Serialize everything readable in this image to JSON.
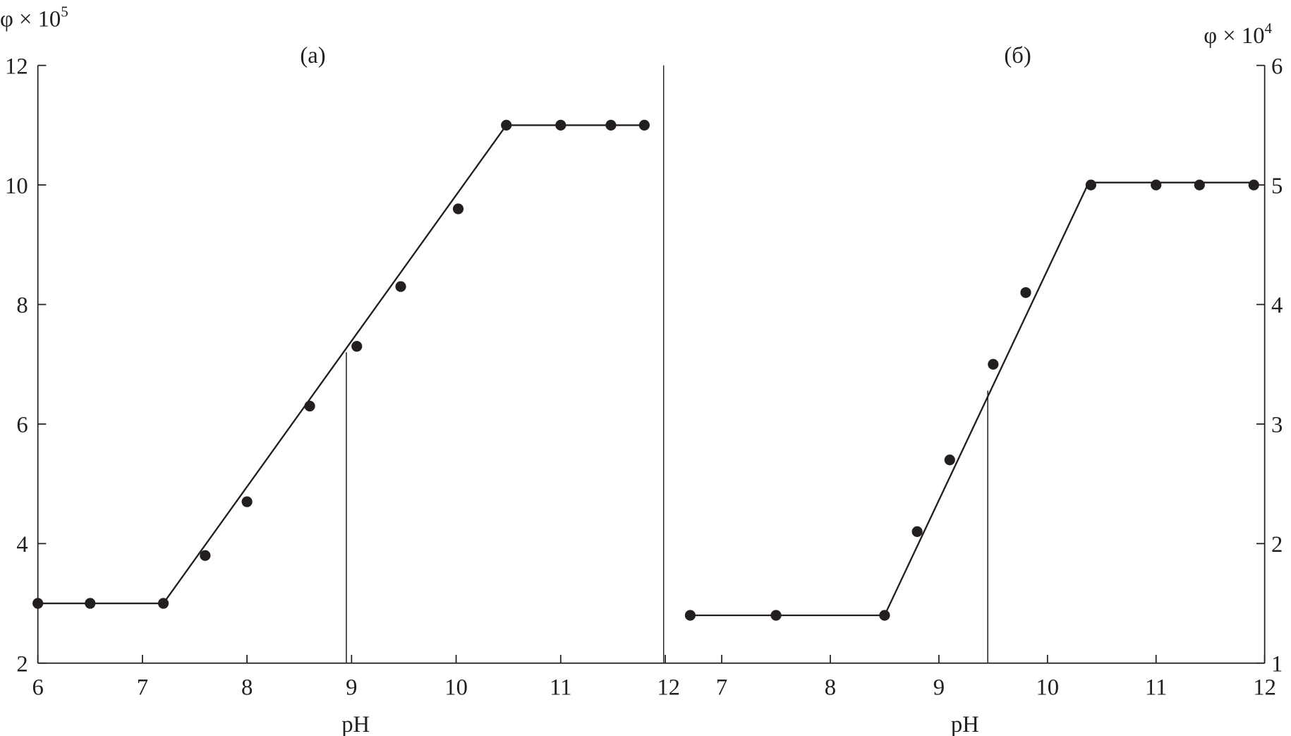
{
  "chart_data": [
    {
      "type": "scatter",
      "panel_label": "(a)",
      "xlabel": "pH",
      "ylabel": "φ × 10",
      "ylabel_exp": "5",
      "xlim": [
        6,
        12
      ],
      "ylim": [
        2,
        12
      ],
      "xticks": [
        6,
        7,
        8,
        9,
        10,
        11,
        12
      ],
      "yticks": [
        2,
        4,
        6,
        8,
        10,
        12
      ],
      "y_axis_side": "left",
      "grid": false,
      "points": {
        "x": [
          6,
          6.5,
          7.2,
          7.6,
          8.0,
          8.6,
          9.05,
          9.47,
          10.02,
          10.48,
          11.0,
          11.48,
          11.8
        ],
        "y": [
          3,
          3,
          3,
          3.8,
          4.7,
          6.3,
          7.3,
          8.3,
          9.6,
          11,
          11,
          11,
          11
        ]
      },
      "fit_line": {
        "x": [
          6,
          7.2,
          10.48,
          11.8
        ],
        "y": [
          3,
          3,
          11,
          11
        ]
      },
      "marker_line": {
        "x": 8.95,
        "y_top": 7.2
      }
    },
    {
      "type": "scatter",
      "panel_label": "(б)",
      "xlabel": "pH",
      "ylabel": "φ × 10",
      "ylabel_exp": "4",
      "xlim": [
        6.48,
        12
      ],
      "ylim": [
        1,
        6
      ],
      "xticks": [
        7,
        8,
        9,
        10,
        11,
        12
      ],
      "yticks": [
        1,
        2,
        3,
        4,
        5,
        6
      ],
      "y_axis_side": "right",
      "grid": false,
      "points": {
        "x": [
          6.71,
          7.5,
          8.5,
          8.8,
          9.1,
          9.5,
          9.8,
          10.4,
          11.0,
          11.4,
          11.9
        ],
        "y": [
          1.4,
          1.4,
          1.4,
          2.1,
          2.7,
          3.5,
          4.1,
          5.0,
          5.0,
          5.0,
          5.0
        ]
      },
      "fit_line": {
        "x": [
          6.71,
          8.5,
          10.38,
          11.9
        ],
        "y": [
          1.4,
          1.4,
          5.02,
          5.02
        ]
      },
      "marker_line": {
        "x": 9.45,
        "y_top": 3.28
      }
    }
  ]
}
